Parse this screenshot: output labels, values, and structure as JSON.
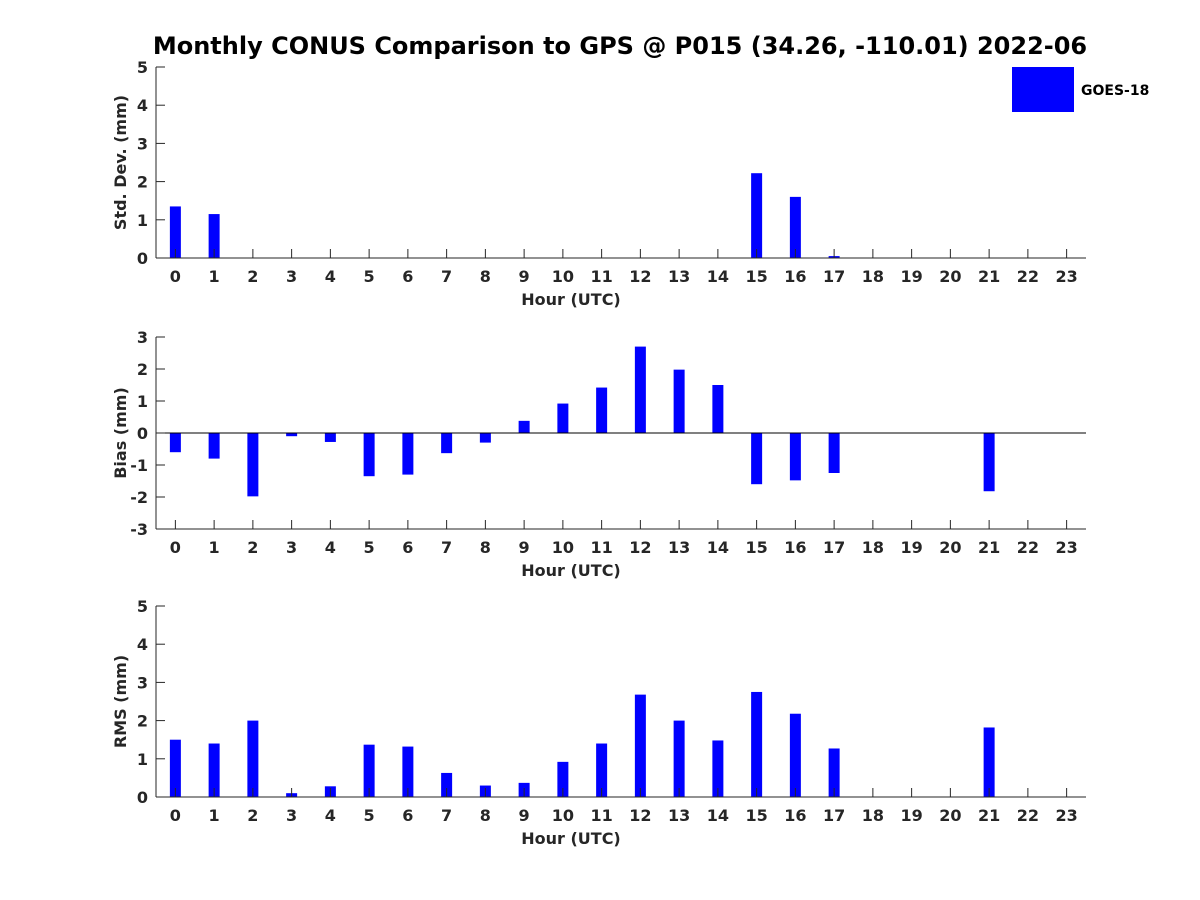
{
  "figure_title": "Monthly CONUS Comparison to GPS @ P015 (34.26, -110.01) 2022-06",
  "series_color": "#0000ff",
  "legend": {
    "label": "GOES-18",
    "placement": "top-right"
  },
  "chart_data": [
    {
      "type": "bar",
      "ylabel": "Std. Dev. (mm)",
      "xlabel": "Hour (UTC)",
      "ylim": [
        0,
        5
      ],
      "yticks": [
        0,
        1,
        2,
        3,
        4,
        5
      ],
      "categories": [
        "0",
        "1",
        "2",
        "3",
        "4",
        "5",
        "6",
        "7",
        "8",
        "9",
        "10",
        "11",
        "12",
        "13",
        "14",
        "15",
        "16",
        "17",
        "18",
        "19",
        "20",
        "21",
        "22",
        "23"
      ],
      "series": [
        {
          "name": "GOES-18",
          "values": [
            1.35,
            1.15,
            null,
            null,
            null,
            null,
            null,
            null,
            null,
            null,
            null,
            null,
            null,
            null,
            null,
            2.22,
            1.6,
            0.05,
            null,
            null,
            null,
            null,
            null,
            null
          ]
        }
      ]
    },
    {
      "type": "bar",
      "ylabel": "Bias (mm)",
      "xlabel": "Hour (UTC)",
      "ylim": [
        -3,
        3
      ],
      "yticks": [
        -3,
        -2,
        -1,
        0,
        1,
        2,
        3
      ],
      "zero_line": true,
      "categories": [
        "0",
        "1",
        "2",
        "3",
        "4",
        "5",
        "6",
        "7",
        "8",
        "9",
        "10",
        "11",
        "12",
        "13",
        "14",
        "15",
        "16",
        "17",
        "18",
        "19",
        "20",
        "21",
        "22",
        "23"
      ],
      "series": [
        {
          "name": "GOES-18",
          "values": [
            -0.6,
            -0.8,
            -1.98,
            -0.1,
            -0.28,
            -1.35,
            -1.3,
            -0.63,
            -0.3,
            0.38,
            0.92,
            1.42,
            2.7,
            1.98,
            1.5,
            -1.6,
            -1.48,
            -1.25,
            null,
            null,
            null,
            -1.82,
            null,
            null
          ]
        }
      ]
    },
    {
      "type": "bar",
      "ylabel": "RMS (mm)",
      "xlabel": "Hour (UTC)",
      "ylim": [
        0,
        5
      ],
      "yticks": [
        0,
        1,
        2,
        3,
        4,
        5
      ],
      "categories": [
        "0",
        "1",
        "2",
        "3",
        "4",
        "5",
        "6",
        "7",
        "8",
        "9",
        "10",
        "11",
        "12",
        "13",
        "14",
        "15",
        "16",
        "17",
        "18",
        "19",
        "20",
        "21",
        "22",
        "23"
      ],
      "series": [
        {
          "name": "GOES-18",
          "values": [
            1.5,
            1.4,
            2.0,
            0.1,
            0.28,
            1.37,
            1.32,
            0.63,
            0.3,
            0.37,
            0.92,
            1.4,
            2.68,
            2.0,
            1.48,
            2.75,
            2.18,
            1.27,
            null,
            null,
            null,
            1.82,
            null,
            null
          ]
        }
      ]
    }
  ]
}
